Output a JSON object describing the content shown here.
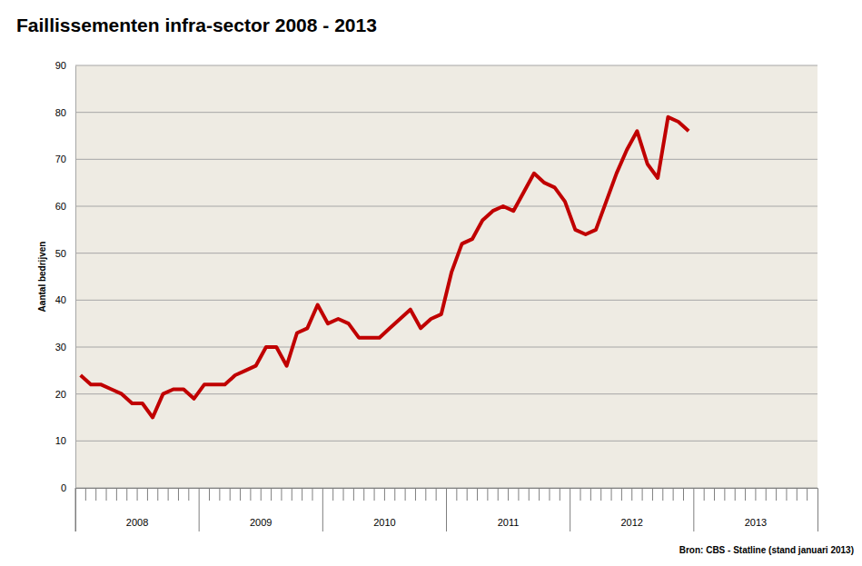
{
  "chart_data": {
    "type": "line",
    "title": "Faillissementen infra-sector 2008 - 2013",
    "y_label": "Aantal bedrijven",
    "annotations": [
      "Bron: CBS - Statline (stand januari 2013)"
    ],
    "categories": [
      "2008",
      null,
      null,
      null,
      null,
      null,
      null,
      null,
      null,
      null,
      null,
      null,
      "2009",
      null,
      null,
      null,
      null,
      null,
      null,
      null,
      null,
      null,
      null,
      null,
      "2010",
      null,
      null,
      null,
      null,
      null,
      null,
      null,
      null,
      null,
      null,
      null,
      "2011",
      null,
      null,
      null,
      null,
      null,
      null,
      null,
      null,
      null,
      null,
      null,
      "2012",
      null,
      null,
      null,
      null,
      null,
      null,
      null,
      null,
      null,
      null,
      null,
      "2013",
      null,
      null,
      null,
      null,
      null,
      null,
      null,
      null,
      null,
      null,
      null
    ],
    "values": [
      24,
      22,
      22,
      21,
      20,
      18,
      18,
      15,
      20,
      21,
      21,
      19,
      22,
      22,
      22,
      24,
      25,
      26,
      30,
      30,
      26,
      33,
      34,
      39,
      35,
      36,
      35,
      32,
      32,
      32,
      34,
      36,
      38,
      34,
      36,
      37,
      46,
      52,
      53,
      57,
      59,
      60,
      59,
      63,
      67,
      65,
      64,
      61,
      55,
      54,
      55,
      61,
      67,
      72,
      76,
      69,
      66,
      79,
      78,
      76,
      null,
      null,
      null,
      null,
      null,
      null,
      null,
      null,
      null,
      null,
      null,
      null
    ],
    "color": "#c00000",
    "ylim": [
      0,
      90
    ],
    "yticks": [
      0,
      10,
      20,
      30,
      40,
      50,
      60,
      70,
      80,
      90
    ],
    "grid": true
  }
}
